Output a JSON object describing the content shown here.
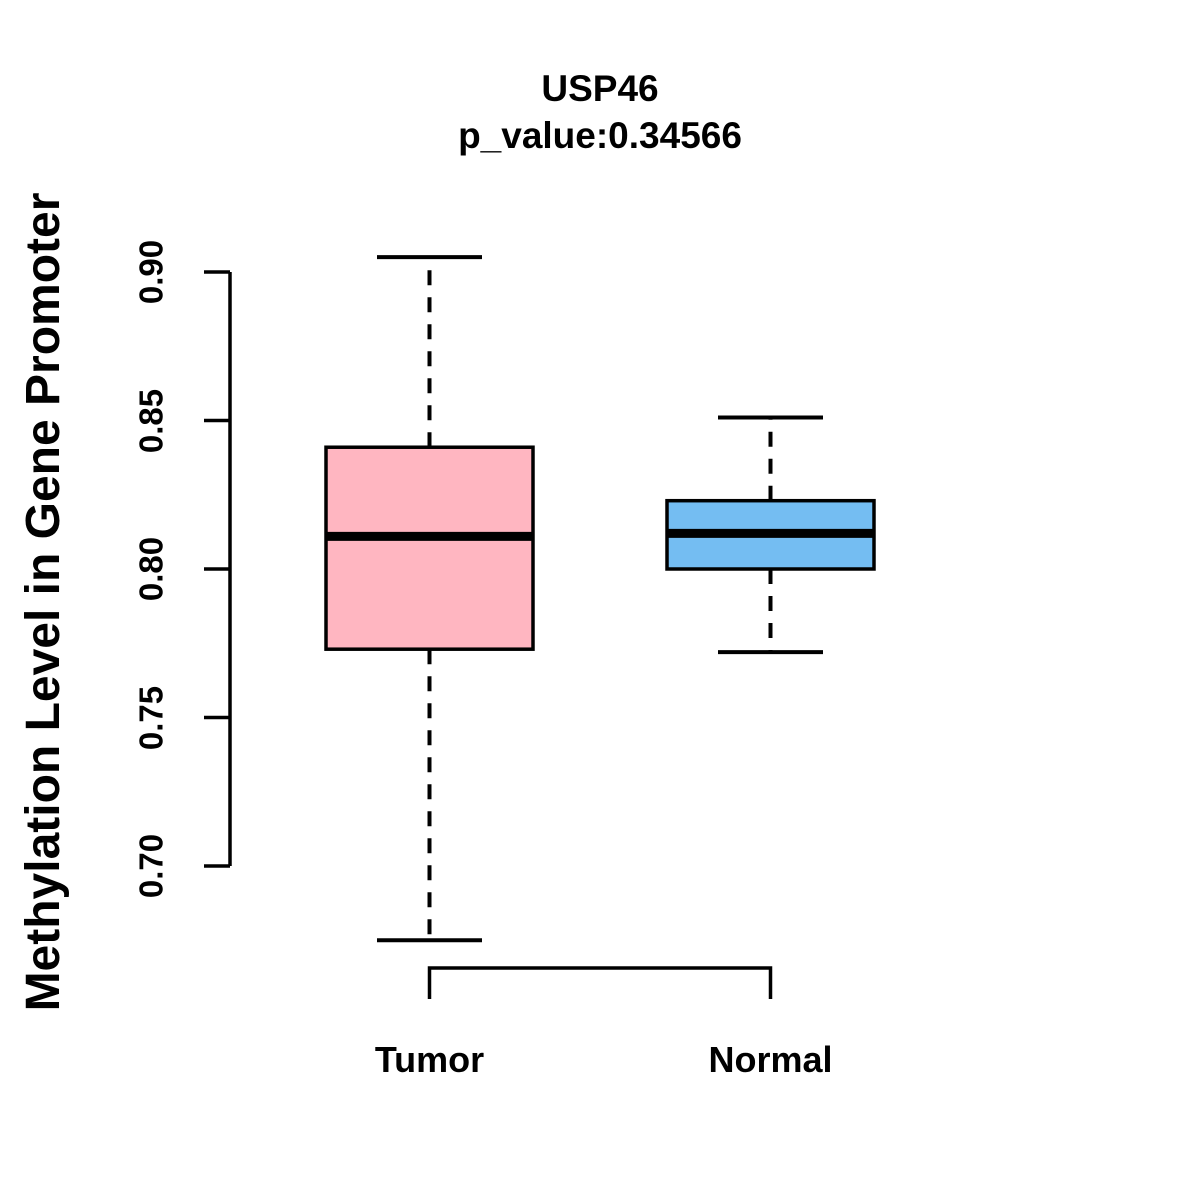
{
  "header": {
    "title": "USP46",
    "subtitle": "p_value:0.34566"
  },
  "axes": {
    "y_label": "Methylation Level in Gene Promoter",
    "y_tick_labels": [
      "0.70",
      "0.75",
      "0.80",
      "0.85",
      "0.90"
    ],
    "x_category_labels": [
      "Tumor",
      "Normal"
    ]
  },
  "colors": {
    "tumor_fill": "#FFB6C1",
    "normal_fill": "#74BDF2",
    "line": "#000000",
    "background": "#FFFFFF"
  },
  "chart_data": {
    "type": "boxplot",
    "title": "USP46",
    "subtitle": "p_value:0.34566",
    "xlabel": "",
    "ylabel": "Methylation Level in Gene Promoter",
    "categories": [
      "Tumor",
      "Normal"
    ],
    "y_ticks": [
      0.7,
      0.75,
      0.8,
      0.85,
      0.9
    ],
    "ylim": [
      0.7,
      0.9
    ],
    "grid": false,
    "legend": "none",
    "series": [
      {
        "name": "Tumor",
        "color": "#FFB6C1",
        "whisker_low": 0.675,
        "q1": 0.773,
        "median": 0.811,
        "q3": 0.841,
        "whisker_high": 0.905
      },
      {
        "name": "Normal",
        "color": "#74BDF2",
        "whisker_low": 0.772,
        "q1": 0.8,
        "median": 0.812,
        "q3": 0.823,
        "whisker_high": 0.851
      }
    ]
  }
}
